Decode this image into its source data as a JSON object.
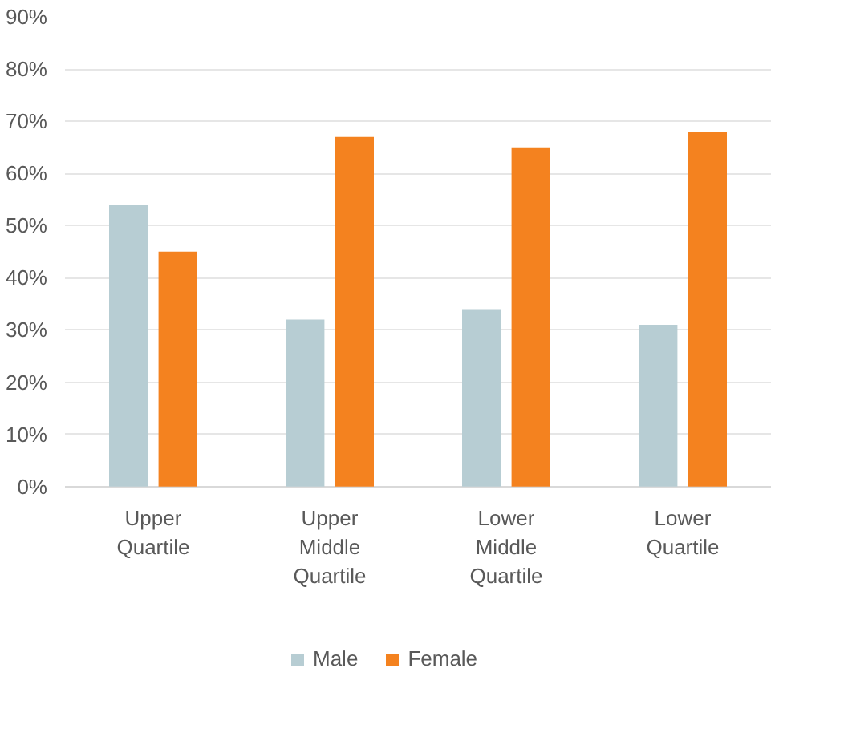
{
  "chart_data": {
    "type": "bar",
    "categories": [
      "Upper Quartile",
      "Upper Middle Quartile",
      "Lower Middle Quartile",
      "Lower Quartile"
    ],
    "series": [
      {
        "name": "Male",
        "color": "#b7cdd3",
        "values": [
          54,
          32,
          34,
          31
        ]
      },
      {
        "name": "Female",
        "color": "#f4821f",
        "values": [
          45,
          67,
          65,
          68
        ]
      }
    ],
    "ylim": [
      0,
      90
    ],
    "yticks": [
      {
        "value": 0,
        "label": "0%"
      },
      {
        "value": 10,
        "label": "10%"
      },
      {
        "value": 20,
        "label": "20%"
      },
      {
        "value": 30,
        "label": "30%"
      },
      {
        "value": 40,
        "label": "40%"
      },
      {
        "value": 50,
        "label": "50%"
      },
      {
        "value": 60,
        "label": "60%"
      },
      {
        "value": 70,
        "label": "70%"
      },
      {
        "value": 80,
        "label": "80%"
      },
      {
        "value": 90,
        "label": "90%"
      }
    ],
    "grid": "y",
    "legend": "bottom"
  }
}
